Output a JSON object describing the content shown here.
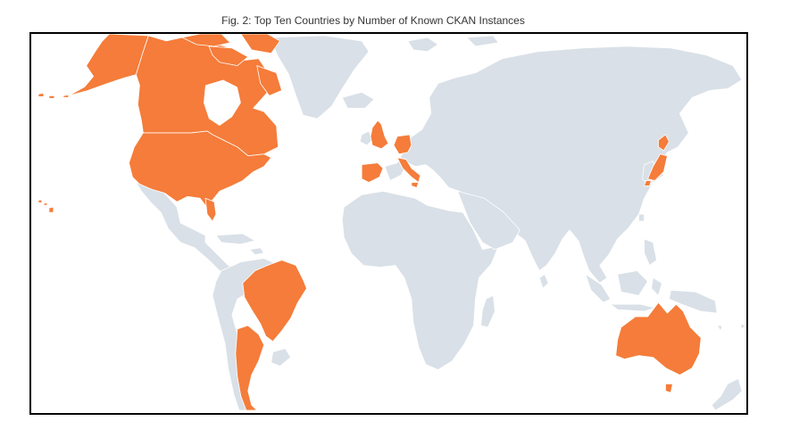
{
  "title": "Fig. 2: Top Ten Countries by Number of Known CKAN Instances",
  "colors": {
    "highlight": "#f57c3a",
    "land": "#d9e0e7",
    "background": "#ffffff",
    "frame": "#000000"
  },
  "highlighted_countries": [
    "United States",
    "Canada",
    "Brazil",
    "Argentina",
    "United Kingdom",
    "Germany",
    "Spain",
    "Italy",
    "Japan",
    "Australia"
  ]
}
